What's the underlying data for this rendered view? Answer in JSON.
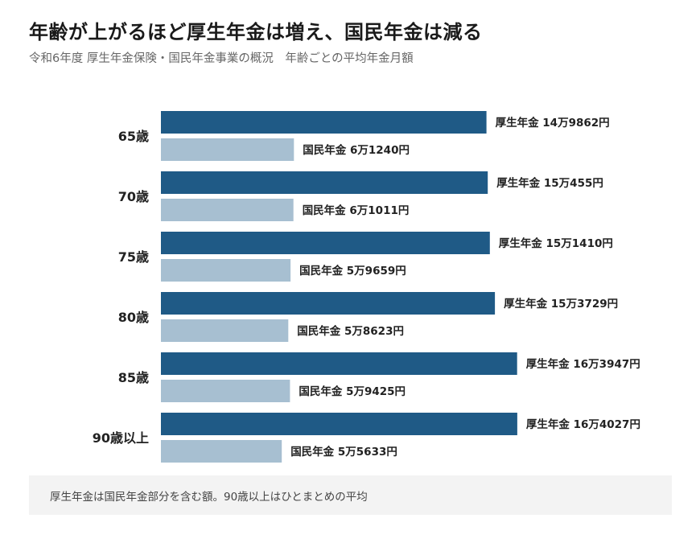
{
  "title": "年齢が上がるほど厚生年金は増え、国民年金は減る",
  "subtitle": "令和6年度 厚生年金保険・国民年金事業の概況　年齢ごとの平均年金月額",
  "note": "厚生年金は国民年金部分を含む額。90歳以上はひとまとめの平均",
  "colors": {
    "kosei": "#1f5a86",
    "kokumin": "#a7bfd1"
  },
  "chart_data": {
    "type": "bar",
    "orientation": "horizontal",
    "unit": "円",
    "categories": [
      "65歳",
      "70歳",
      "75歳",
      "80歳",
      "85歳",
      "90歳以上"
    ],
    "series": [
      {
        "name": "厚生年金",
        "values": [
          149862,
          150455,
          151410,
          153729,
          163947,
          164027
        ],
        "labels": [
          "厚生年金 14万9862円",
          "厚生年金 15万455円",
          "厚生年金 15万1410円",
          "厚生年金 15万3729円",
          "厚生年金 16万3947円",
          "厚生年金 16万4027円"
        ]
      },
      {
        "name": "国民年金",
        "values": [
          61240,
          61011,
          59659,
          58623,
          59425,
          55633
        ],
        "labels": [
          "国民年金 6万1240円",
          "国民年金 6万1011円",
          "国民年金 5万9659円",
          "国民年金 5万8623円",
          "国民年金 5万9425円",
          "国民年金 5万5633円"
        ]
      }
    ]
  }
}
